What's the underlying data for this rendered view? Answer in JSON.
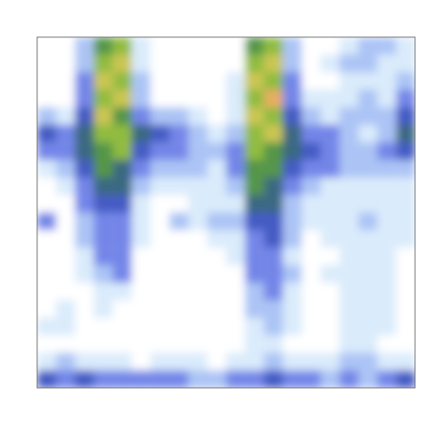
{
  "chart_data": {
    "type": "heatmap",
    "tick_labels": false,
    "xlim": [
      0,
      20
    ],
    "ylim": [
      0,
      20
    ],
    "zlim": [
      0,
      10
    ],
    "cells": [
      [
        0,
        0,
        2,
        6,
        7,
        1,
        0,
        0,
        0,
        0,
        0,
        6,
        7,
        2,
        0,
        0,
        1,
        2,
        2,
        1
      ],
      [
        0,
        0,
        2,
        7,
        8,
        1,
        0,
        0,
        0,
        0,
        0,
        7,
        8,
        2,
        0,
        1,
        2,
        2,
        1,
        1
      ],
      [
        0,
        0,
        3,
        8,
        7,
        2,
        0,
        0,
        0,
        0,
        1,
        8,
        7,
        3,
        0,
        0,
        1,
        1,
        1,
        2
      ],
      [
        0,
        0,
        3,
        7,
        8,
        2,
        0,
        0,
        0,
        0,
        1,
        7,
        9,
        3,
        1,
        1,
        1,
        2,
        1,
        3
      ],
      [
        2,
        1,
        4,
        8,
        6,
        3,
        2,
        2,
        1,
        0,
        1,
        8,
        7,
        4,
        2,
        1,
        2,
        2,
        2,
        4
      ],
      [
        4,
        3,
        5,
        7,
        7,
        5,
        4,
        3,
        2,
        1,
        2,
        7,
        8,
        5,
        3,
        3,
        2,
        1,
        2,
        5
      ],
      [
        3,
        3,
        5,
        6,
        7,
        4,
        3,
        3,
        2,
        2,
        3,
        7,
        6,
        5,
        4,
        3,
        2,
        2,
        3,
        4
      ],
      [
        1,
        2,
        4,
        6,
        5,
        3,
        2,
        2,
        2,
        1,
        3,
        6,
        6,
        4,
        3,
        3,
        2,
        2,
        2,
        2
      ],
      [
        0,
        1,
        3,
        5,
        5,
        2,
        1,
        1,
        1,
        1,
        2,
        6,
        5,
        3,
        2,
        1,
        1,
        1,
        1,
        1
      ],
      [
        0,
        0,
        3,
        4,
        4,
        1,
        0,
        0,
        1,
        1,
        1,
        5,
        5,
        2,
        1,
        1,
        1,
        1,
        1,
        1
      ],
      [
        3,
        0,
        2,
        3,
        3,
        1,
        0,
        2,
        1,
        2,
        2,
        4,
        4,
        2,
        1,
        1,
        1,
        2,
        1,
        1
      ],
      [
        0,
        0,
        2,
        3,
        3,
        1,
        0,
        0,
        0,
        1,
        1,
        3,
        4,
        2,
        0,
        1,
        1,
        1,
        1,
        1
      ],
      [
        0,
        0,
        1,
        3,
        3,
        0,
        0,
        0,
        0,
        0,
        1,
        3,
        3,
        1,
        0,
        0,
        1,
        1,
        1,
        0
      ],
      [
        0,
        0,
        1,
        2,
        3,
        0,
        0,
        0,
        0,
        0,
        0,
        3,
        3,
        2,
        0,
        1,
        1,
        1,
        1,
        0
      ],
      [
        0,
        0,
        0,
        1,
        1,
        0,
        0,
        0,
        0,
        0,
        0,
        2,
        3,
        1,
        0,
        0,
        1,
        1,
        1,
        0
      ],
      [
        0,
        1,
        0,
        1,
        0,
        0,
        0,
        0,
        0,
        0,
        0,
        2,
        2,
        1,
        0,
        0,
        1,
        1,
        1,
        0
      ],
      [
        1,
        1,
        0,
        0,
        0,
        0,
        0,
        0,
        0,
        0,
        0,
        1,
        2,
        1,
        0,
        0,
        1,
        1,
        1,
        0
      ],
      [
        0,
        0,
        0,
        0,
        0,
        0,
        0,
        0,
        0,
        0,
        0,
        1,
        1,
        0,
        0,
        0,
        1,
        1,
        0,
        0
      ],
      [
        1,
        2,
        1,
        1,
        1,
        0,
        1,
        1,
        1,
        0,
        1,
        1,
        2,
        1,
        1,
        1,
        2,
        2,
        1,
        1
      ],
      [
        4,
        3,
        4,
        3,
        3,
        3,
        3,
        3,
        2,
        2,
        3,
        3,
        4,
        3,
        3,
        2,
        3,
        2,
        3,
        4
      ]
    ]
  }
}
